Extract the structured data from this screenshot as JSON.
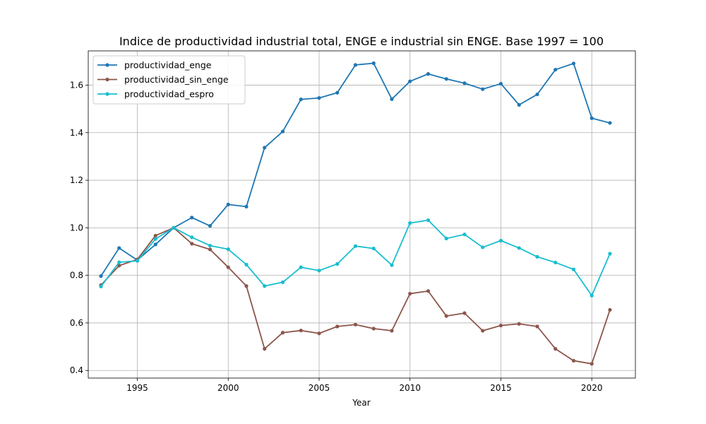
{
  "chart_data": {
    "type": "line",
    "title": "Indice de productividad industrial total, ENGE e industrial sin ENGE. Base 1997 = 100",
    "xlabel": "Year",
    "ylabel": "",
    "xlim": [
      1992.3,
      2022.4
    ],
    "ylim": [
      0.368,
      1.744
    ],
    "xticks": [
      1995,
      2000,
      2005,
      2010,
      2015,
      2020
    ],
    "yticks": [
      0.4,
      0.6,
      0.8,
      1.0,
      1.2,
      1.4,
      1.6
    ],
    "xtick_labels": [
      "1995",
      "2000",
      "2005",
      "2010",
      "2015",
      "2020"
    ],
    "ytick_labels": [
      "0.4",
      "0.6",
      "0.8",
      "1.0",
      "1.2",
      "1.4",
      "1.6"
    ],
    "grid": true,
    "legend_position": "top-left",
    "x": [
      1993,
      1994,
      1995,
      1996,
      1997,
      1998,
      1999,
      2000,
      2001,
      2002,
      2003,
      2004,
      2005,
      2006,
      2007,
      2008,
      2009,
      2010,
      2011,
      2012,
      2013,
      2014,
      2015,
      2016,
      2017,
      2018,
      2019,
      2020,
      2021
    ],
    "series": [
      {
        "name": "productividad_enge",
        "color": "#1f77b4",
        "values": [
          0.797,
          0.915,
          0.864,
          0.93,
          1.0,
          1.043,
          1.008,
          1.098,
          1.089,
          1.337,
          1.405,
          1.54,
          1.546,
          1.568,
          1.685,
          1.692,
          1.541,
          1.616,
          1.647,
          1.626,
          1.608,
          1.583,
          1.606,
          1.517,
          1.561,
          1.665,
          1.691,
          1.461,
          1.441
        ]
      },
      {
        "name": "productividad_sin_enge",
        "color": "#8c564b",
        "values": [
          0.759,
          0.841,
          0.867,
          0.967,
          1.0,
          0.933,
          0.909,
          0.834,
          0.755,
          0.491,
          0.559,
          0.568,
          0.556,
          0.585,
          0.593,
          0.576,
          0.567,
          0.723,
          0.734,
          0.629,
          0.641,
          0.567,
          0.589,
          0.596,
          0.585,
          0.491,
          0.441,
          0.428,
          0.655
        ]
      },
      {
        "name": "productividad_espro",
        "color": "#17becf",
        "values": [
          0.753,
          0.855,
          0.861,
          0.953,
          1.0,
          0.96,
          0.925,
          0.91,
          0.845,
          0.755,
          0.771,
          0.834,
          0.82,
          0.848,
          0.923,
          0.913,
          0.843,
          1.02,
          1.032,
          0.955,
          0.972,
          0.918,
          0.946,
          0.915,
          0.878,
          0.854,
          0.825,
          0.715,
          0.891
        ]
      }
    ]
  }
}
